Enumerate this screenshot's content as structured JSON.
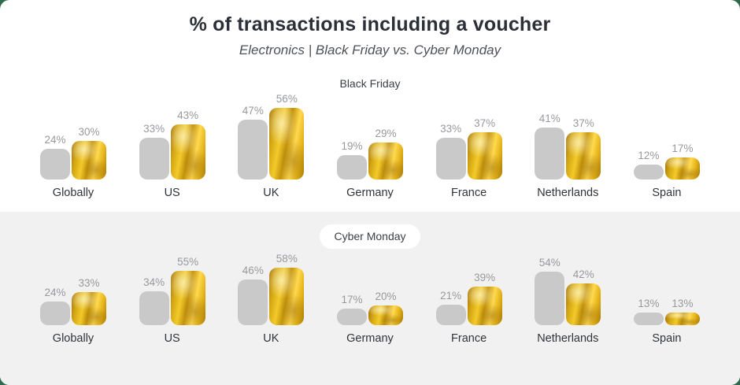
{
  "page": {
    "title": "% of transactions including a voucher",
    "subtitle": "Electronics | Black Friday vs. Cyber Monday"
  },
  "colors": {
    "background_green": "#2e6b4d",
    "card_background": "#ffffff",
    "alt_section_background": "#f1f1f1",
    "bar_gray": "#c9c9c9",
    "gold_dark": "#a1700a",
    "gold_mid": "#e4b217",
    "gold_light": "#ffd94f",
    "value_label": "#97999c",
    "category_label": "#2f343a"
  },
  "chart_data": [
    {
      "type": "bar",
      "title": "Black Friday",
      "unit": "%",
      "categories": [
        "Globally",
        "US",
        "UK",
        "Germany",
        "France",
        "Netherlands",
        "Spain"
      ],
      "series": [
        {
          "name": "gray",
          "values": [
            24,
            33,
            47,
            19,
            33,
            41,
            12
          ]
        },
        {
          "name": "gold",
          "values": [
            30,
            43,
            56,
            29,
            37,
            37,
            17
          ]
        }
      ],
      "ylim": [
        0,
        60
      ],
      "grid": false,
      "legend": "none",
      "value_labels": "above-bars"
    },
    {
      "type": "bar",
      "title": "Cyber Monday",
      "unit": "%",
      "categories": [
        "Globally",
        "US",
        "UK",
        "Germany",
        "France",
        "Netherlands",
        "Spain"
      ],
      "series": [
        {
          "name": "gray",
          "values": [
            24,
            34,
            46,
            17,
            21,
            54,
            13
          ]
        },
        {
          "name": "gold",
          "values": [
            33,
            55,
            58,
            20,
            39,
            42,
            13
          ]
        }
      ],
      "ylim": [
        0,
        60
      ],
      "grid": false,
      "legend": "none",
      "value_labels": "above-bars"
    }
  ]
}
